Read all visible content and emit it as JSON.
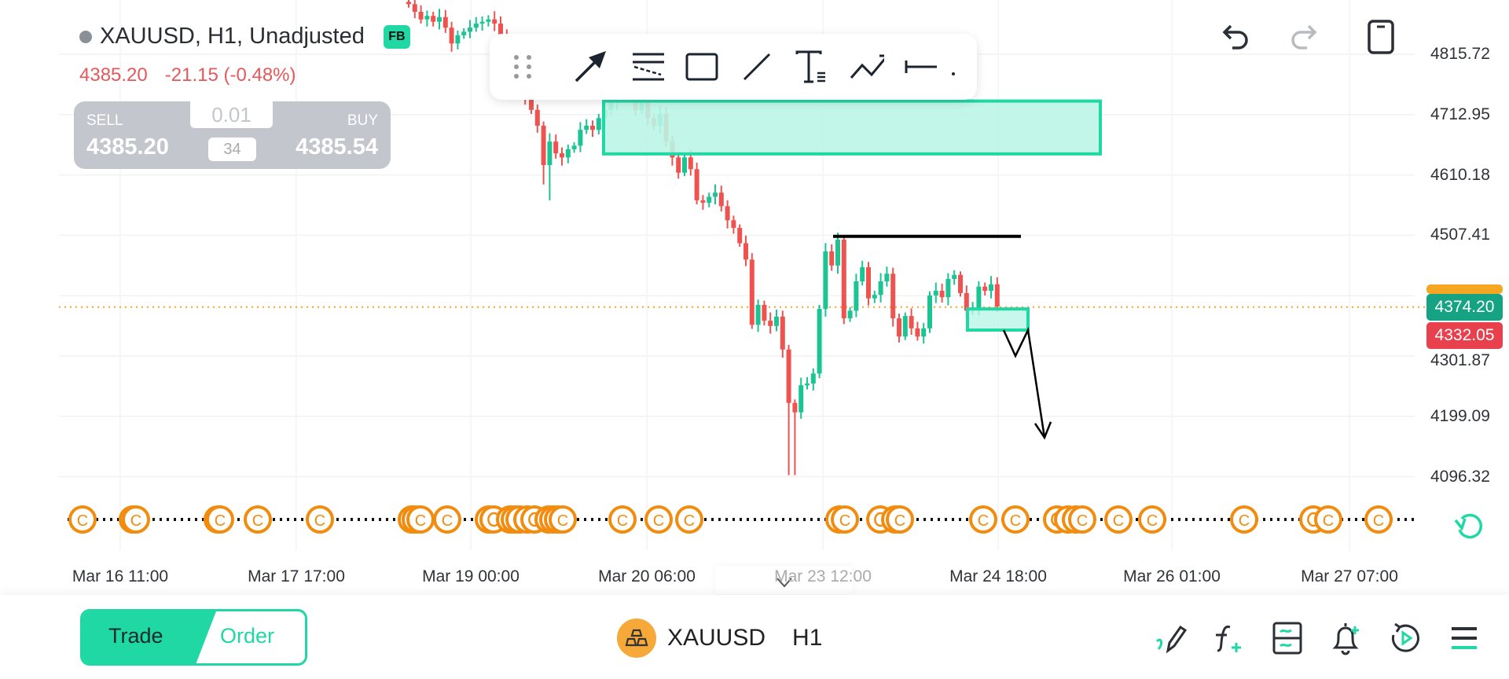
{
  "header": {
    "symbol_title": "XAUUSD, H1, Unadjusted",
    "badge": "FB",
    "last_price": "4385.20",
    "change": "-21.15 (-0.48%)"
  },
  "trade_panel": {
    "sell_label": "SELL",
    "sell_price": "4385.20",
    "lot": "0.01",
    "spread": "34",
    "buy_label": "BUY",
    "buy_price": "4385.54"
  },
  "drawing_toolbar": {
    "tools": [
      "drag-handle",
      "arrow",
      "parallel-channel",
      "rectangle",
      "trend-line",
      "text",
      "path",
      "horizontal-ray",
      "more"
    ]
  },
  "top_actions": [
    "undo",
    "redo",
    "portrait-toggle"
  ],
  "price_axis": {
    "ticks": [
      "4815.72",
      "4712.95",
      "4610.18",
      "4507.41",
      "4301.87",
      "4199.09",
      "4096.32"
    ],
    "badges": [
      {
        "value": "4374.20",
        "color": "#16a383"
      },
      {
        "value": "4332.05",
        "color": "#e8414d"
      }
    ],
    "current_price": 4385.2
  },
  "time_axis": {
    "ticks": [
      "Mar 16 11:00",
      "Mar 17 17:00",
      "Mar 19 00:00",
      "Mar 20 06:00",
      "Mar 23 12:00",
      "Mar 24 18:00",
      "Mar 26 01:00",
      "Mar 27 07:00"
    ]
  },
  "events": {
    "marker": "C",
    "color": "#f28c0f"
  },
  "colors": {
    "up": "#1cc494",
    "down": "#ef5350",
    "accent": "#1fd8a4",
    "zone_fill": "#baf5e6",
    "price_line": "#f5a623"
  },
  "chart_data": {
    "type": "candlestick",
    "ylim": [
      4060,
      4908
    ],
    "start_open": 4905,
    "close": [
      4901,
      4888,
      4875,
      4881,
      4871,
      4879,
      4861,
      4834,
      4848,
      4854,
      4861,
      4868,
      4871,
      4875,
      4868,
      4848,
      4814,
      4774,
      4761,
      4741,
      4721,
      4694,
      4627,
      4667,
      4647,
      4640,
      4654,
      4660,
      4687,
      4694,
      4687,
      4707,
      4721,
      4734,
      4750,
      4754,
      4741,
      4721,
      4734,
      4707,
      4694,
      4714,
      4667,
      4640,
      4614,
      4640,
      4620,
      4567,
      4563,
      4573,
      4580,
      4557,
      4533,
      4520,
      4494,
      4466,
      4355,
      4389,
      4362,
      4353,
      4369,
      4313,
      4222,
      4206,
      4252,
      4255,
      4272,
      4382,
      4480,
      4456,
      4500,
      4366,
      4379,
      4429,
      4453,
      4400,
      4406,
      4429,
      4442,
      4366,
      4335,
      4370,
      4349,
      4335,
      4349,
      4405,
      4413,
      4402,
      4433,
      4440,
      4409,
      4379,
      4383,
      4420,
      4413,
      4424,
      4386
    ],
    "wick_extremes": [
      {
        "index": 22,
        "low": 4594
      },
      {
        "index": 23,
        "low": 4567
      },
      {
        "index": 62,
        "low": 4099
      },
      {
        "index": 63,
        "low": 4099
      },
      {
        "index": 70,
        "high": 4512
      }
    ],
    "drawings": [
      {
        "type": "rectangle",
        "top": 4736,
        "bottom": 4646
      },
      {
        "type": "horizontal-line",
        "price": 4507
      },
      {
        "type": "rectangle",
        "top": 4382,
        "bottom": 4346
      },
      {
        "type": "path-arrow",
        "points": [
          4346,
          4302,
          4346,
          4163
        ]
      }
    ]
  },
  "bottom": {
    "trade_label": "Trade",
    "order_label": "Order",
    "symbol": "XAUUSD",
    "timeframe": "H1",
    "icons": [
      "draw-icon",
      "indicator-icon",
      "layout-icon",
      "alert-add-icon",
      "replay-icon",
      "menu-icon"
    ]
  }
}
